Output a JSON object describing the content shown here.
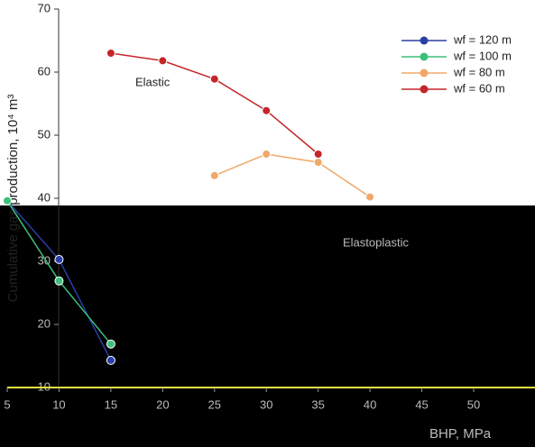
{
  "chart_data": {
    "type": "line",
    "y_label": "Cumulative gas production, 10⁴ m³",
    "x_label": "BHP, MPa",
    "annotations": [
      "Elastic",
      "Elastoplastic"
    ],
    "xlim": [
      5,
      50
    ],
    "xticks": [
      5,
      10,
      15,
      20,
      25,
      30,
      35,
      40,
      45,
      50
    ],
    "ylim": [
      10,
      70
    ],
    "yticks": [
      10,
      20,
      30,
      40,
      50,
      60,
      70
    ],
    "series": [
      {
        "name": "wf = 120 m",
        "color": "#2a3fa6",
        "x": [
          5,
          10,
          15
        ],
        "values": [
          39.6,
          30.3,
          14.3
        ]
      },
      {
        "name": "wf = 100 m",
        "color": "#3cbf7a",
        "x": [
          5,
          10,
          15
        ],
        "values": [
          39.6,
          26.9,
          16.9
        ]
      },
      {
        "name": "wf = 80 m",
        "color": "#f0a868",
        "x": [
          25,
          30,
          35,
          40
        ],
        "values": [
          43.6,
          47.0,
          45.7,
          40.2
        ]
      },
      {
        "name": "wf = 60 m",
        "color": "#c4262b",
        "x": [
          15,
          20,
          25,
          30,
          35
        ],
        "values": [
          63.0,
          61.8,
          58.9,
          53.9,
          47.0
        ]
      }
    ]
  }
}
